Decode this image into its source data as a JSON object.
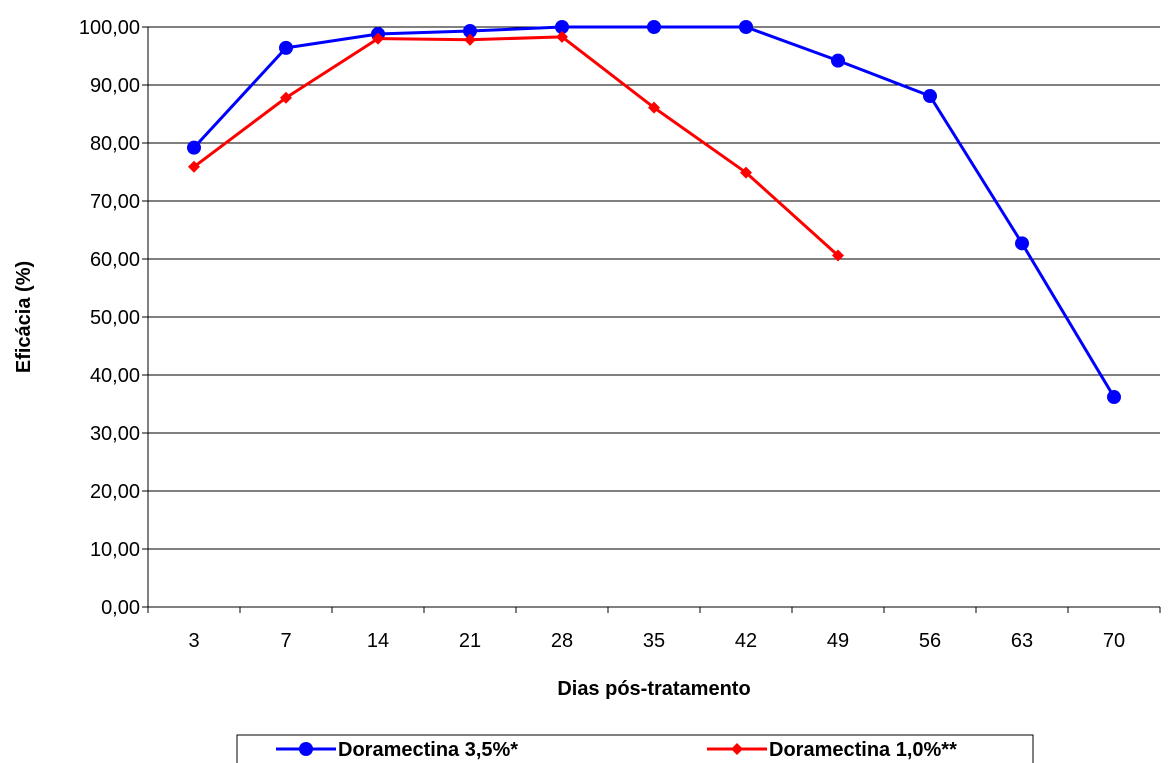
{
  "chart_data": {
    "type": "line",
    "xlabel": "Dias pós-tratamento",
    "ylabel": "Eficácia (%)",
    "categories": [
      "3",
      "7",
      "14",
      "21",
      "28",
      "35",
      "42",
      "49",
      "56",
      "63",
      "70"
    ],
    "y_ticks": [
      "0,00",
      "10,00",
      "20,00",
      "30,00",
      "40,00",
      "50,00",
      "60,00",
      "70,00",
      "80,00",
      "90,00",
      "100,00"
    ],
    "ylim": [
      0,
      100
    ],
    "grid": true,
    "legend_position": "bottom",
    "series": [
      {
        "name": "Doramectina 3,5%*",
        "color": "#0000ff",
        "marker": "circle",
        "values": [
          79.2,
          96.4,
          98.8,
          99.3,
          100,
          100,
          100,
          94.2,
          88.1,
          62.7,
          36.2
        ]
      },
      {
        "name": "Doramectina 1,0%**",
        "color": "#ff0000",
        "marker": "diamond",
        "values": [
          75.9,
          87.8,
          98.0,
          97.8,
          98.3,
          86.1,
          74.9,
          60.6,
          null,
          null,
          null
        ]
      }
    ]
  }
}
